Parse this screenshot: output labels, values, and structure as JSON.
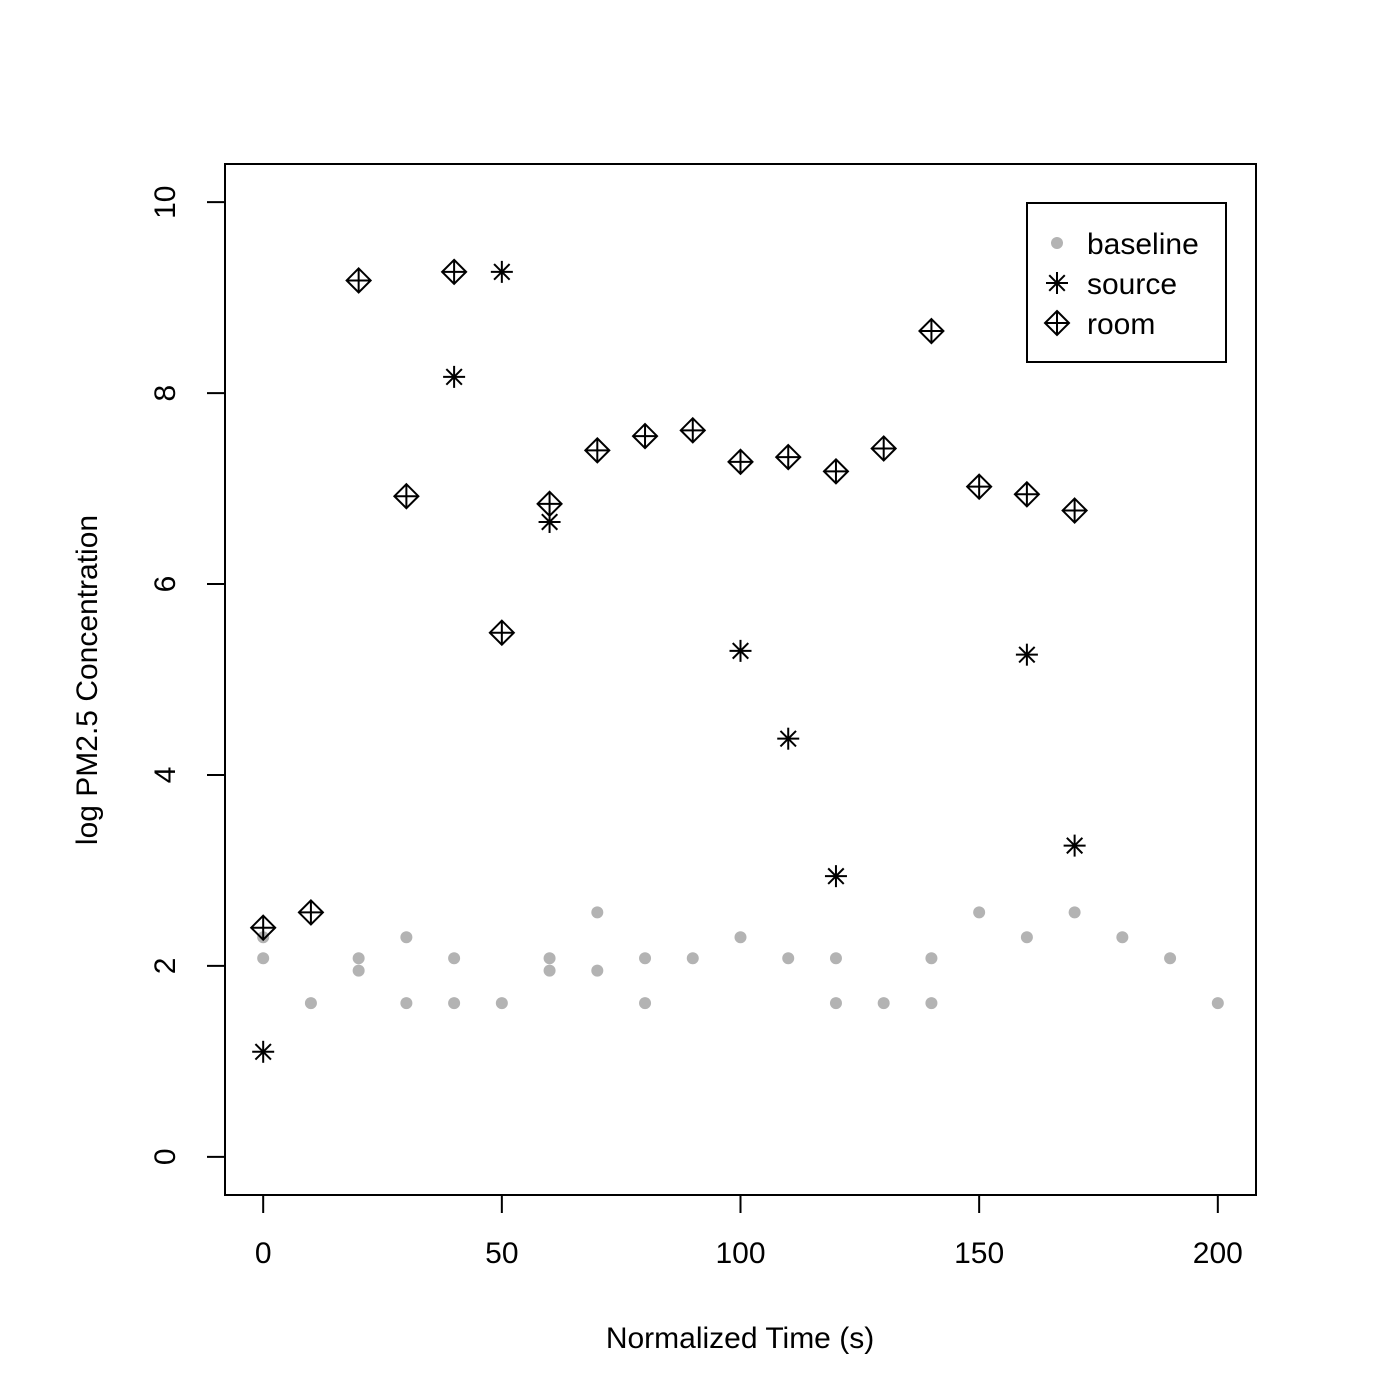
{
  "chart_data": {
    "type": "scatter",
    "title": "",
    "xlabel": "Normalized Time (s)",
    "ylabel": "log PM2.5 Concentration",
    "xlim": [
      -8,
      208
    ],
    "ylim": [
      -0.4,
      10.4
    ],
    "xticks": [
      0,
      50,
      100,
      150,
      200
    ],
    "yticks": [
      0,
      2,
      4,
      6,
      8,
      10
    ],
    "grid": false,
    "legend_position": "top-right",
    "colors": {
      "baseline": "#b3b3b3",
      "source": "#000000",
      "room": "#000000"
    },
    "series": [
      {
        "name": "baseline",
        "marker": "filled-circle",
        "points": [
          [
            0,
            2.3
          ],
          [
            0,
            2.08
          ],
          [
            10,
            1.61
          ],
          [
            20,
            2.08
          ],
          [
            20,
            1.95
          ],
          [
            30,
            2.3
          ],
          [
            30,
            1.61
          ],
          [
            40,
            2.08
          ],
          [
            40,
            1.61
          ],
          [
            50,
            1.61
          ],
          [
            60,
            2.08
          ],
          [
            60,
            1.95
          ],
          [
            70,
            2.56
          ],
          [
            70,
            1.95
          ],
          [
            80,
            2.08
          ],
          [
            80,
            1.61
          ],
          [
            90,
            2.08
          ],
          [
            100,
            2.3
          ],
          [
            110,
            2.08
          ],
          [
            120,
            2.08
          ],
          [
            120,
            1.61
          ],
          [
            130,
            1.61
          ],
          [
            140,
            2.08
          ],
          [
            140,
            1.61
          ],
          [
            150,
            2.56
          ],
          [
            160,
            2.3
          ],
          [
            170,
            2.56
          ],
          [
            180,
            2.3
          ],
          [
            190,
            2.08
          ],
          [
            200,
            1.61
          ]
        ]
      },
      {
        "name": "source",
        "marker": "asterisk",
        "points": [
          [
            0,
            1.1
          ],
          [
            40,
            8.17
          ],
          [
            50,
            9.27
          ],
          [
            60,
            6.65
          ],
          [
            100,
            5.3
          ],
          [
            110,
            4.38
          ],
          [
            120,
            2.94
          ],
          [
            160,
            5.26
          ],
          [
            170,
            3.26
          ]
        ]
      },
      {
        "name": "room",
        "marker": "diamond-plus",
        "points": [
          [
            0,
            2.4
          ],
          [
            10,
            2.56
          ],
          [
            20,
            9.18
          ],
          [
            30,
            6.92
          ],
          [
            40,
            9.27
          ],
          [
            50,
            5.49
          ],
          [
            60,
            6.84
          ],
          [
            70,
            7.4
          ],
          [
            80,
            7.55
          ],
          [
            90,
            7.61
          ],
          [
            100,
            7.28
          ],
          [
            110,
            7.33
          ],
          [
            120,
            7.18
          ],
          [
            130,
            7.42
          ],
          [
            140,
            8.65
          ],
          [
            150,
            7.02
          ],
          [
            160,
            6.94
          ],
          [
            170,
            6.77
          ]
        ]
      }
    ]
  }
}
